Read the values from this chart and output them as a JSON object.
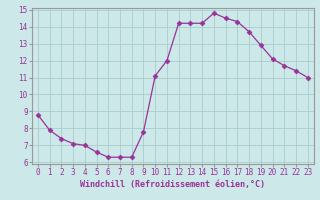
{
  "x": [
    0,
    1,
    2,
    3,
    4,
    5,
    6,
    7,
    8,
    9,
    10,
    11,
    12,
    13,
    14,
    15,
    16,
    17,
    18,
    19,
    20,
    21,
    22,
    23
  ],
  "y": [
    8.8,
    7.9,
    7.4,
    7.1,
    7.0,
    6.6,
    6.3,
    6.3,
    6.3,
    7.8,
    11.1,
    12.0,
    14.2,
    14.2,
    14.2,
    14.8,
    14.5,
    14.3,
    13.7,
    12.9,
    12.1,
    11.7,
    11.4,
    11.0
  ],
  "line_color": "#993399",
  "marker": "D",
  "marker_size": 2.5,
  "bg_color": "#cce8e8",
  "grid_color": "#aacccc",
  "xlabel": "Windchill (Refroidissement éolien,°C)",
  "xlabel_color": "#993399",
  "tick_color": "#993399",
  "spine_color": "#999999",
  "ylim": [
    6,
    15
  ],
  "xlim": [
    -0.5,
    23.5
  ],
  "yticks": [
    6,
    7,
    8,
    9,
    10,
    11,
    12,
    13,
    14,
    15
  ],
  "xticks": [
    0,
    1,
    2,
    3,
    4,
    5,
    6,
    7,
    8,
    9,
    10,
    11,
    12,
    13,
    14,
    15,
    16,
    17,
    18,
    19,
    20,
    21,
    22,
    23
  ],
  "tick_fontsize": 5.5,
  "xlabel_fontsize": 6.0
}
